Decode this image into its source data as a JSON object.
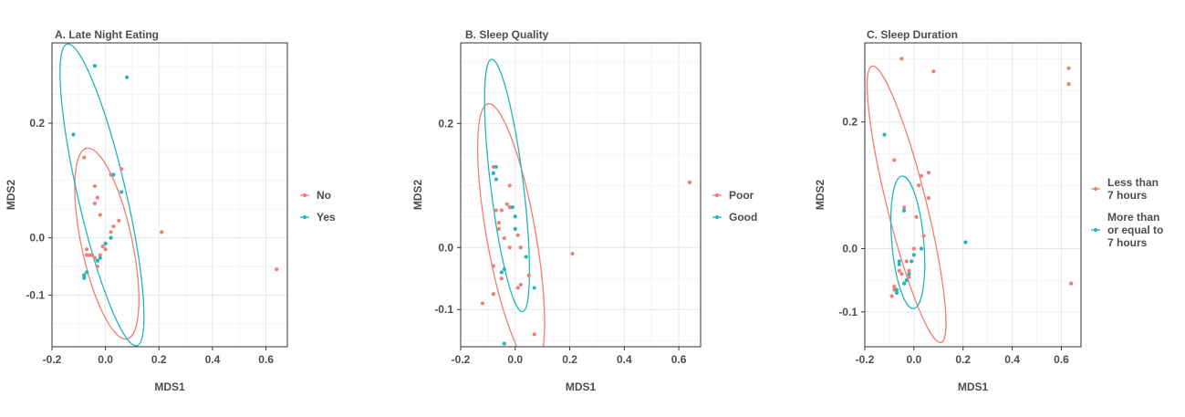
{
  "chart_data": [
    {
      "type": "scatter",
      "title": "A. Late Night Eating",
      "xlabel": "MDS1",
      "ylabel": "MDS2",
      "xlim": [
        -0.2,
        0.68
      ],
      "ylim": [
        -0.19,
        0.34
      ],
      "xticks": [
        -0.2,
        0.0,
        0.2,
        0.4,
        0.6
      ],
      "xtick_labels": [
        "-0.2",
        "0.0",
        "0.2",
        "0.4",
        "0.6"
      ],
      "yticks": [
        -0.1,
        0.0,
        0.2
      ],
      "ytick_labels": [
        "-0.1",
        "0.0",
        "0.2"
      ],
      "grid": true,
      "legend_position": "right",
      "series": [
        {
          "name": "No",
          "color": "#F07E74",
          "points": [
            [
              -0.08,
              0.14
            ],
            [
              -0.04,
              0.09
            ],
            [
              -0.03,
              0.07
            ],
            [
              -0.04,
              0.06
            ],
            [
              -0.02,
              0.04
            ],
            [
              -0.07,
              -0.02
            ],
            [
              -0.06,
              -0.03
            ],
            [
              -0.07,
              -0.03
            ],
            [
              -0.05,
              -0.03
            ],
            [
              -0.04,
              -0.035
            ],
            [
              -0.02,
              -0.03
            ],
            [
              0.0,
              -0.02
            ],
            [
              -0.01,
              -0.015
            ],
            [
              0.02,
              0.11
            ],
            [
              0.06,
              0.12
            ],
            [
              0.05,
              0.03
            ],
            [
              0.03,
              0.02
            ],
            [
              0.02,
              0.01
            ],
            [
              -0.03,
              -0.05
            ],
            [
              0.21,
              0.01
            ],
            [
              0.64,
              -0.055
            ]
          ]
        },
        {
          "name": "Yes",
          "color": "#22B5C0",
          "points": [
            [
              -0.04,
              0.3
            ],
            [
              0.08,
              0.28
            ],
            [
              -0.12,
              0.18
            ],
            [
              0.03,
              0.11
            ],
            [
              0.06,
              0.08
            ],
            [
              0.02,
              0.0
            ],
            [
              0.0,
              -0.01
            ],
            [
              -0.02,
              -0.035
            ],
            [
              -0.03,
              -0.04
            ],
            [
              -0.07,
              -0.06
            ],
            [
              -0.08,
              -0.065
            ],
            [
              -0.08,
              -0.07
            ]
          ]
        }
      ],
      "ellipses": [
        {
          "series": "No",
          "color": "#F07E74",
          "cx": 0.005,
          "cy": -0.01,
          "rx": 0.095,
          "ry": 0.17,
          "angle_deg": -12
        },
        {
          "series": "Yes",
          "color": "#22B5C0",
          "cx": -0.013,
          "cy": 0.075,
          "rx": 0.09,
          "ry": 0.27,
          "angle_deg": -13
        }
      ]
    },
    {
      "type": "scatter",
      "title": "B. Sleep Quality",
      "xlabel": "MDS1",
      "ylabel": "MDS2",
      "xlim": [
        -0.2,
        0.68
      ],
      "ylim": [
        -0.16,
        0.33
      ],
      "xticks": [
        -0.2,
        0.0,
        0.2,
        0.4,
        0.6
      ],
      "xtick_labels": [
        "-0.2",
        "0.0",
        "0.2",
        "0.4",
        "0.6"
      ],
      "yticks": [
        -0.1,
        0.0,
        0.2
      ],
      "ytick_labels": [
        "-0.1",
        "0.0",
        "0.2"
      ],
      "grid": true,
      "legend_position": "right",
      "series": [
        {
          "name": "Poor",
          "color": "#F07E74",
          "points": [
            [
              -0.08,
              0.13
            ],
            [
              -0.02,
              0.1
            ],
            [
              -0.07,
              0.06
            ],
            [
              -0.05,
              0.06
            ],
            [
              -0.03,
              0.07
            ],
            [
              -0.02,
              0.065
            ],
            [
              -0.06,
              0.04
            ],
            [
              -0.06,
              0.03
            ],
            [
              -0.04,
              0.015
            ],
            [
              -0.02,
              0.0
            ],
            [
              0.01,
              0.02
            ],
            [
              0.02,
              0.0
            ],
            [
              -0.08,
              -0.03
            ],
            [
              0.05,
              -0.045
            ],
            [
              -0.05,
              -0.05
            ],
            [
              0.02,
              -0.06
            ],
            [
              0.01,
              -0.065
            ],
            [
              -0.08,
              -0.075
            ],
            [
              -0.12,
              -0.09
            ],
            [
              0.07,
              -0.14
            ],
            [
              0.21,
              -0.01
            ],
            [
              0.64,
              0.105
            ]
          ]
        },
        {
          "name": "Good",
          "color": "#22B5C0",
          "points": [
            [
              -0.07,
              0.13
            ],
            [
              -0.08,
              0.12
            ],
            [
              -0.07,
              0.11
            ],
            [
              -0.01,
              0.065
            ],
            [
              0.0,
              0.05
            ],
            [
              0.0,
              0.03
            ],
            [
              0.04,
              -0.015
            ],
            [
              -0.04,
              -0.035
            ],
            [
              -0.05,
              -0.04
            ],
            [
              0.07,
              -0.065
            ],
            [
              -0.04,
              -0.155
            ]
          ]
        }
      ],
      "ellipses": [
        {
          "series": "Poor",
          "color": "#F07E74",
          "cx": -0.015,
          "cy": 0.02,
          "rx": 0.09,
          "ry": 0.215,
          "angle_deg": -10
        },
        {
          "series": "Good",
          "color": "#22B5C0",
          "cx": -0.03,
          "cy": 0.1,
          "rx": 0.06,
          "ry": 0.205,
          "angle_deg": -7
        }
      ]
    },
    {
      "type": "scatter",
      "title": "C. Sleep Duration",
      "xlabel": "MDS1",
      "ylabel": "MDS2",
      "xlim": [
        -0.2,
        0.68
      ],
      "ylim": [
        -0.155,
        0.325
      ],
      "xticks": [
        -0.2,
        0.0,
        0.2,
        0.4,
        0.6
      ],
      "xtick_labels": [
        "-0.2",
        "0.0",
        "0.2",
        "0.4",
        "0.6"
      ],
      "yticks": [
        -0.1,
        0.0,
        0.2
      ],
      "ytick_labels": [
        "-0.1",
        "0.0",
        "0.2"
      ],
      "grid": true,
      "legend_position": "right",
      "series": [
        {
          "name": "Less than 7 hours",
          "color": "#F07E74",
          "points": [
            [
              -0.05,
              0.3
            ],
            [
              0.08,
              0.28
            ],
            [
              -0.08,
              0.14
            ],
            [
              0.03,
              0.115
            ],
            [
              0.06,
              0.12
            ],
            [
              0.02,
              0.1
            ],
            [
              0.06,
              0.08
            ],
            [
              -0.04,
              0.065
            ],
            [
              0.01,
              0.05
            ],
            [
              0.04,
              0.02
            ],
            [
              0.0,
              0.0
            ],
            [
              -0.03,
              -0.02
            ],
            [
              -0.02,
              -0.035
            ],
            [
              -0.06,
              -0.035
            ],
            [
              -0.05,
              -0.04
            ],
            [
              -0.02,
              -0.045
            ],
            [
              -0.08,
              -0.06
            ],
            [
              -0.08,
              -0.065
            ],
            [
              -0.09,
              -0.075
            ],
            [
              0.63,
              0.285
            ],
            [
              0.63,
              0.26
            ],
            [
              0.64,
              -0.055
            ]
          ]
        },
        {
          "name": "More than or equal to 7 hours",
          "color": "#22B5C0",
          "points": [
            [
              -0.12,
              0.18
            ],
            [
              -0.04,
              0.06
            ],
            [
              0.03,
              0.0
            ],
            [
              0.0,
              -0.01
            ],
            [
              -0.01,
              -0.02
            ],
            [
              -0.06,
              -0.02
            ],
            [
              -0.06,
              -0.025
            ],
            [
              -0.02,
              -0.04
            ],
            [
              -0.03,
              -0.05
            ],
            [
              -0.04,
              -0.055
            ],
            [
              -0.07,
              -0.065
            ],
            [
              -0.07,
              -0.07
            ],
            [
              0.21,
              0.01
            ]
          ]
        }
      ],
      "ellipses": [
        {
          "series": "Less than 7 hours",
          "color": "#F07E74",
          "cx": -0.03,
          "cy": 0.07,
          "rx": 0.08,
          "ry": 0.225,
          "angle_deg": -14
        },
        {
          "series": "More than or equal to 7 hours",
          "color": "#22B5C0",
          "cx": -0.025,
          "cy": 0.01,
          "rx": 0.065,
          "ry": 0.105,
          "angle_deg": -5
        }
      ]
    }
  ],
  "legends": [
    {
      "items": [
        {
          "label_lines": [
            "No"
          ],
          "color": "#F07E74"
        },
        {
          "label_lines": [
            "Yes"
          ],
          "color": "#22B5C0"
        }
      ]
    },
    {
      "items": [
        {
          "label_lines": [
            "Poor"
          ],
          "color": "#F07E74"
        },
        {
          "label_lines": [
            "Good"
          ],
          "color": "#22B5C0"
        }
      ]
    },
    {
      "items": [
        {
          "label_lines": [
            "Less than",
            "7 hours"
          ],
          "color": "#F07E74"
        },
        {
          "label_lines": [
            "More than",
            "or equal to",
            "7 hours"
          ],
          "color": "#22B5C0"
        }
      ]
    }
  ]
}
